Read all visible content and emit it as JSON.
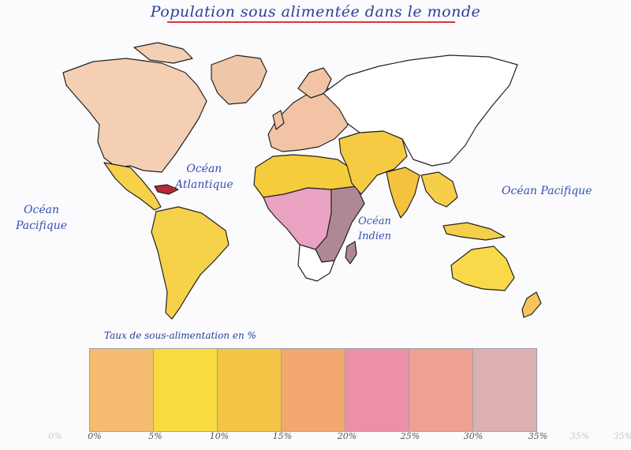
{
  "title": "Population sous alimentée dans le monde",
  "oceans": {
    "atlantique_line1": "Océan",
    "atlantique_line2": "Atlantique",
    "pacifique_left_line1": "Océan",
    "pacifique_left_line2": "Pacifique",
    "pacifique_right": "Océan Pacifique",
    "indien_line1": "Océan",
    "indien_line2": "Indien"
  },
  "legend": {
    "title": "Taux de sous-alimentation en %",
    "classes": [
      {
        "color": "#f5bb6e"
      },
      {
        "color": "#f8dc3f"
      },
      {
        "color": "#f4c447"
      },
      {
        "color": "#f3a86f"
      },
      {
        "color": "#ee8fa8"
      },
      {
        "color": "#f0a292"
      },
      {
        "color": "#ddb0b2"
      }
    ],
    "ticks": [
      "0%",
      "0%",
      "5%",
      "10%",
      "15%",
      "20%",
      "25%",
      "30%",
      "35%",
      "35%",
      "35%"
    ]
  },
  "region_colors": {
    "north_america": "#f5cfb3",
    "greenland": "#efc7a8",
    "europe": "#f2c3a4",
    "latin_america": "#f6d14a",
    "cuba": "#b52b35",
    "sahel_north_africa": "#f5cc3c",
    "central_africa_pink": "#e9a2c1",
    "east_africa_dark": "#b08895",
    "southern_africa": "#ffffff",
    "middle_east_asia": "#f6cb44",
    "russia_china": "#ffffff",
    "india": "#f4c23d",
    "southeast_asia": "#f6cf4a",
    "australia": "#f9d94a",
    "new_zealand": "#f6c45a",
    "madagascar": "#b08895"
  }
}
